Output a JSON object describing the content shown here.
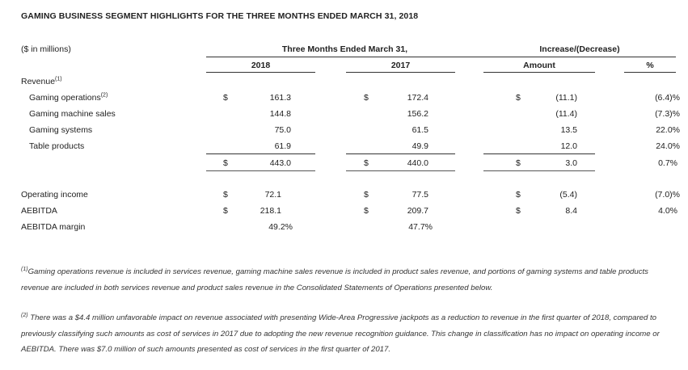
{
  "title": "GAMING BUSINESS SEGMENT HIGHLIGHTS FOR THE THREE MONTHS ENDED MARCH 31, 2018",
  "header": {
    "units": "($ in millions)",
    "period": "Three Months Ended March 31,",
    "change": "Increase/(Decrease)",
    "year1": "2018",
    "year2": "2017",
    "amount": "Amount",
    "pct": "%"
  },
  "revenue_label": "Revenue",
  "revenue_sup": "(1)",
  "currency": "$",
  "rows": [
    {
      "label": "Gaming operations",
      "sup": "(2)",
      "y2018": "161.3",
      "y2017": "172.4",
      "amount": "(11.1)",
      "pct": "(6.4)%"
    },
    {
      "label": "Gaming machine sales",
      "sup": "",
      "y2018": "144.8",
      "y2017": "156.2",
      "amount": "(11.4)",
      "pct": "(7.3)%"
    },
    {
      "label": "Gaming systems",
      "sup": "",
      "y2018": "75.0",
      "y2017": "61.5",
      "amount": "13.5",
      "pct": "22.0%"
    },
    {
      "label": "Table products",
      "sup": "",
      "y2018": "61.9",
      "y2017": "49.9",
      "amount": "12.0",
      "pct": "24.0%"
    }
  ],
  "total": {
    "y2018": "443.0",
    "y2017": "440.0",
    "amount": "3.0",
    "pct": "0.7%"
  },
  "other_rows": [
    {
      "label": "Operating income",
      "y2018": "72.1",
      "y2017": "77.5",
      "amount": "(5.4)",
      "pct": "(7.0)%"
    },
    {
      "label": "AEBITDA",
      "y2018": "218.1",
      "y2017": "209.7",
      "amount": "8.4",
      "pct": "4.0%"
    },
    {
      "label": "AEBITDA margin",
      "y2018": "49.2%",
      "y2017": "47.7%",
      "amount": "",
      "pct": ""
    }
  ],
  "footnotes": [
    {
      "sup": "(1)",
      "text": "Gaming operations revenue is included in services revenue, gaming machine sales revenue is included in product sales revenue, and portions of gaming systems and table products revenue are included in both services revenue and product sales revenue in the Consolidated Statements of Operations presented below."
    },
    {
      "sup": "(2)",
      "text": "There was a $4.4 million unfavorable impact on revenue associated with presenting Wide-Area Progressive jackpots as a reduction to revenue in the first quarter of 2018, compared to previously classifying such amounts as cost of services in 2017 due to adopting the new revenue recognition guidance. This change in classification has no impact on operating income or AEBITDA.  There was $7.0 million of such amounts presented as cost of services in the first quarter of 2017."
    }
  ]
}
